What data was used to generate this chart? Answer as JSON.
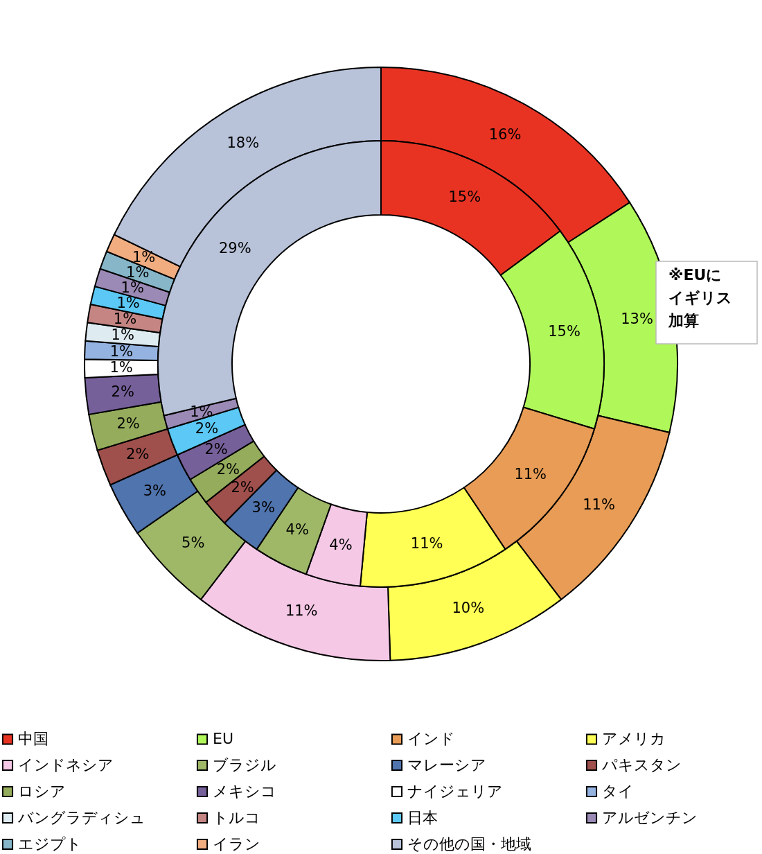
{
  "chart_data": {
    "type": "donut",
    "categories": [
      "中国",
      "EU",
      "インド",
      "アメリカ",
      "インドネシア",
      "ブラジル",
      "マレーシア",
      "パキスタン",
      "ロシア",
      "メキシコ",
      "ナイジェリア",
      "タイ",
      "バングラディシュ",
      "トルコ",
      "日本",
      "アルゼンチン",
      "エジプト",
      "イラン",
      "その他の国・地域"
    ],
    "colors": [
      "#e83323",
      "#b0f75a",
      "#e89c55",
      "#ffff55",
      "#f5c8e6",
      "#9fb868",
      "#4f74ae",
      "#a0504c",
      "#95ac5c",
      "#76609a",
      "#ffffff",
      "#95b3e0",
      "#deebf1",
      "#c48583",
      "#5bc8f5",
      "#9b8ab5",
      "#86b6c8",
      "#f1ac80",
      "#b8c3da"
    ],
    "series": [
      {
        "values": [
          16,
          13,
          11,
          10,
          11,
          5,
          3,
          2,
          2,
          2,
          1,
          1,
          1,
          1,
          1,
          1,
          1,
          1,
          18
        ],
        "value_labels": [
          "16%",
          "13%",
          "11%",
          "10%",
          "11%",
          "5%",
          "3%",
          "2%",
          "2%",
          "2%",
          "1%",
          "1%",
          "1%",
          "1%",
          "1%",
          "1%",
          "1%",
          "1%",
          "18%"
        ]
      },
      {
        "values": [
          15,
          15,
          11,
          11,
          4,
          4,
          3,
          2,
          2,
          2,
          null,
          null,
          null,
          null,
          2,
          1,
          null,
          null,
          29
        ],
        "value_labels": [
          "15%",
          "15%",
          "11%",
          "11%",
          "4%",
          "4%",
          "3%",
          "2%",
          "2%",
          "2%",
          null,
          null,
          null,
          null,
          "2%",
          "1%",
          null,
          null,
          "29%"
        ]
      }
    ],
    "annotations": [
      "※EUに",
      "イギリス",
      "加算"
    ],
    "legend": "bottom"
  }
}
